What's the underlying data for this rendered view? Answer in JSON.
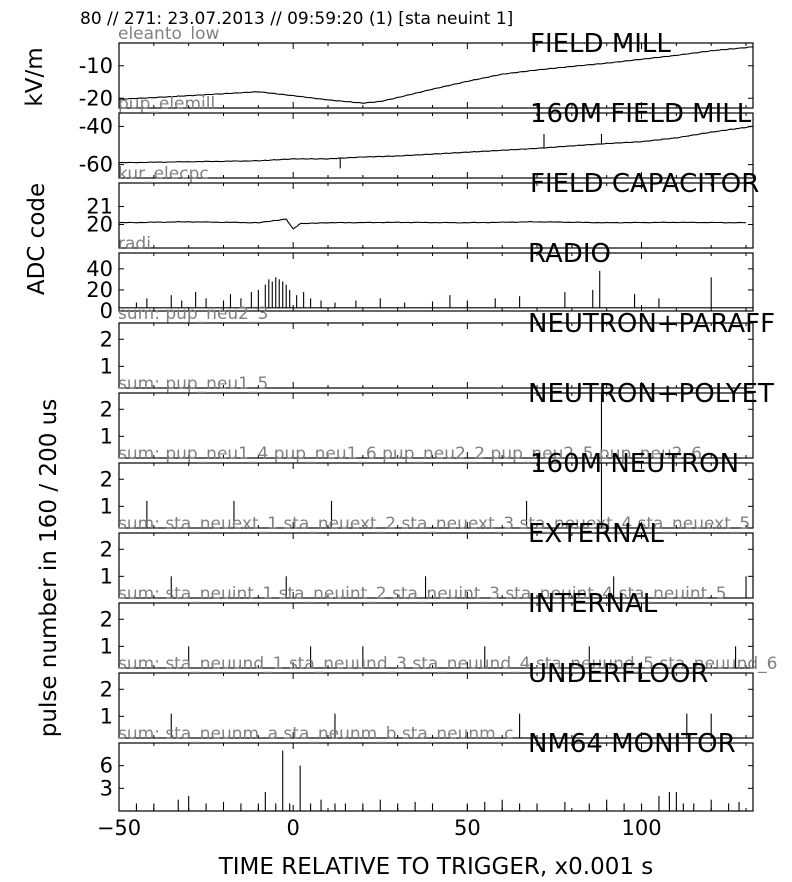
{
  "header": {
    "title": "80 // 271:   23.07.2013 // 09:59:20 (1)  [sta neuint 1]"
  },
  "chart_data": {
    "type": "line",
    "xlabel": "TIME RELATIVE TO TRIGGER,   x0.001 s",
    "xlim": [
      -50,
      132
    ],
    "xticks": [
      -50,
      0,
      50,
      100
    ],
    "xtick_labels": [
      "−50",
      "0",
      "50",
      "100"
    ],
    "ylabels": [
      {
        "text": "kV/m",
        "panels": [
          0,
          0
        ]
      },
      {
        "text": "ADC code",
        "panels": [
          1,
          3
        ]
      },
      {
        "text": "pulse number in 160 / 200 us",
        "panels": [
          4,
          10
        ]
      }
    ],
    "panels": [
      {
        "title": "FIELD MILL",
        "channel": "eleanto_low",
        "ylim": [
          -23,
          -3
        ],
        "yticks": [
          -10,
          -20
        ],
        "ytick_labels": [
          "-10",
          "-20"
        ],
        "series": [
          {
            "style": "line",
            "x": [
              -50,
              -40,
              -30,
              -20,
              -10,
              0,
              10,
              20,
              25,
              30,
              40,
              50,
              60,
              70,
              80,
              90,
              100,
              110,
              120,
              132
            ],
            "y": [
              -20.3,
              -19.8,
              -19.2,
              -18.6,
              -18,
              -19.2,
              -20.5,
              -21.5,
              -21,
              -19.8,
              -17.2,
              -14.8,
              -12.6,
              -11.3,
              -10.2,
              -9.2,
              -8,
              -6.8,
              -5.4,
              -4.2
            ]
          }
        ]
      },
      {
        "title": "160M FIELD MILL",
        "channel": "pup_elemill",
        "ylim": [
          -67,
          -33
        ],
        "yticks": [
          -40,
          -60
        ],
        "ytick_labels": [
          "-40",
          "-60"
        ],
        "series": [
          {
            "style": "line",
            "x": [
              -50,
              -30,
              -10,
              0,
              10,
              20,
              30,
              40,
              50,
              60,
              70,
              80,
              90,
              100,
              110,
              120,
              132
            ],
            "y": [
              -59,
              -58.5,
              -58,
              -57,
              -57,
              -56,
              -55.5,
              -54.5,
              -53.5,
              -52.5,
              -51.5,
              -50.2,
              -49,
              -48,
              -46,
              -43,
              -40
            ],
            "spikes_x": [
              72,
              88.5,
              13.5
            ],
            "spikes_y": [
              -44,
              -44,
              -62
            ]
          }
        ]
      },
      {
        "title": "FIELD CAPACITOR",
        "channel": "kur_elecpc",
        "ylim": [
          18.7,
          22.3
        ],
        "yticks": [
          21,
          20
        ],
        "ytick_labels": [
          "21",
          "20"
        ],
        "series": [
          {
            "style": "line",
            "x": [
              -50,
              -30,
              -10,
              -2,
              0,
              2,
              10,
              30,
              50,
              70,
              90,
              110,
              130
            ],
            "y": [
              20.1,
              20.15,
              20.1,
              20.3,
              19.75,
              20.05,
              20.1,
              20.12,
              20.1,
              20.15,
              20.1,
              20.12,
              20.1
            ]
          }
        ]
      },
      {
        "title": "RADIO",
        "channel": "radi",
        "ylim": [
          0,
          55
        ],
        "yticks": [
          0,
          20,
          40
        ],
        "ytick_labels": [
          "0",
          "20",
          "40"
        ],
        "series": [
          {
            "style": "spikes",
            "baseline": 3,
            "x": [
              -45,
              -42,
              -35,
              -32,
              -28,
              -25,
              -20,
              -18,
              -15,
              -12,
              -10,
              -8,
              -7,
              -6,
              -5,
              -4,
              -3,
              -2,
              -1,
              1,
              3,
              5,
              8,
              12,
              18,
              25,
              32,
              40,
              45,
              50,
              58,
              65,
              78,
              86,
              88,
              98,
              105,
              120
            ],
            "y": [
              8,
              12,
              15,
              10,
              18,
              12,
              10,
              16,
              12,
              18,
              20,
              25,
              30,
              28,
              32,
              30,
              28,
              25,
              20,
              15,
              18,
              12,
              10,
              8,
              10,
              12,
              8,
              9,
              15,
              10,
              12,
              14,
              18,
              20,
              38,
              16,
              12,
              32
            ]
          }
        ]
      },
      {
        "title": "NEUTRON+PARAFF",
        "channel": "sum: pup_neu2_3",
        "ylim": [
          0.2,
          2.6
        ],
        "yticks": [
          2,
          1
        ],
        "ytick_labels": [
          "2",
          "1"
        ],
        "series": []
      },
      {
        "title": "NEUTRON+POLYET",
        "channel": "sum: pup_neu1_5",
        "ylim": [
          0.2,
          2.6
        ],
        "yticks": [
          2,
          1
        ],
        "ytick_labels": [
          "2",
          "1"
        ],
        "series": [
          {
            "style": "spikes",
            "baseline": 0,
            "x": [
              88.5
            ],
            "y": [
              2.6
            ]
          }
        ]
      },
      {
        "title": "160M NEUTRON",
        "channel": "sum: pup_neu1_4 pup_neu1_6 pup_neu2_2 pup_neu2_5 pup_neu2_6",
        "ylim": [
          0.2,
          2.6
        ],
        "yticks": [
          2,
          1
        ],
        "ytick_labels": [
          "2",
          "1"
        ],
        "series": [
          {
            "style": "spikes",
            "baseline": 0,
            "x": [
              -42,
              -17,
              11,
              67,
              88.5
            ],
            "y": [
              1.2,
              1.2,
              1.2,
              1.2,
              2.6
            ]
          }
        ]
      },
      {
        "title": "EXTERNAL",
        "channel": "sum: sta_neuext_1 sta_neuext_2 sta_neuext_3 sta_neuext_4 sta_neuext_5",
        "ylim": [
          0.2,
          2.6
        ],
        "yticks": [
          2,
          1
        ],
        "ytick_labels": [
          "2",
          "1"
        ],
        "series": [
          {
            "style": "spikes",
            "baseline": 0,
            "x": [
              -35,
              -2,
              38,
              92,
              130
            ],
            "y": [
              1,
              1,
              1,
              1,
              1
            ]
          }
        ]
      },
      {
        "title": "INTERNAL",
        "channel": "sum: sta_neuint_1 sta_neuint_2 sta_neuint_3 sta_neuint_4 sta_neuint_5",
        "ylim": [
          0.2,
          2.6
        ],
        "yticks": [
          2,
          1
        ],
        "ytick_labels": [
          "2",
          "1"
        ],
        "series": [
          {
            "style": "spikes",
            "baseline": 0,
            "x": [
              -50,
              -30,
              5,
              20,
              55,
              85,
              127
            ],
            "y": [
              1,
              1,
              1,
              1,
              1,
              1,
              1
            ]
          }
        ]
      },
      {
        "title": "UNDERFLOOR",
        "channel": "sum: sta_neuund_1 sta_neuund_3 sta_neuund_4 sta_neuund_5 sta_neuund_6",
        "ylim": [
          0.2,
          2.6
        ],
        "yticks": [
          2,
          1
        ],
        "ytick_labels": [
          "2",
          "1"
        ],
        "series": [
          {
            "style": "spikes",
            "baseline": 0,
            "x": [
              -35,
              12,
              65,
              113,
              120
            ],
            "y": [
              1.1,
              1.1,
              1.1,
              1.1,
              1.1
            ]
          }
        ]
      },
      {
        "title": "NM64 MONITOR",
        "channel": "sum: sta_neunm_a sta_neunm_b sta_neunm_c",
        "ylim": [
          0,
          9
        ],
        "yticks": [
          6,
          3
        ],
        "ytick_labels": [
          "6",
          "3"
        ],
        "series": [
          {
            "style": "spikes",
            "baseline": 0,
            "x": [
              -45,
              -40,
              -33,
              -30,
              -25,
              -20,
              -15,
              -10,
              -8,
              -5,
              -3,
              -1,
              2,
              5,
              8,
              12,
              15,
              20,
              25,
              30,
              35,
              40,
              50,
              55,
              60,
              65,
              70,
              78,
              85,
              90,
              95,
              100,
              105,
              108,
              110,
              112,
              115,
              120,
              125,
              128
            ],
            "y": [
              1,
              1,
              1.5,
              2,
              1,
              1.2,
              1,
              1,
              2.5,
              1,
              8,
              1,
              6,
              1,
              1.5,
              1,
              1,
              1,
              1.5,
              1,
              1.2,
              1,
              1,
              1.2,
              1.5,
              1,
              1,
              1.2,
              1,
              1.5,
              1,
              1,
              2,
              2.5,
              2.5,
              1,
              1,
              1.5,
              1,
              1.2
            ]
          }
        ]
      }
    ]
  }
}
